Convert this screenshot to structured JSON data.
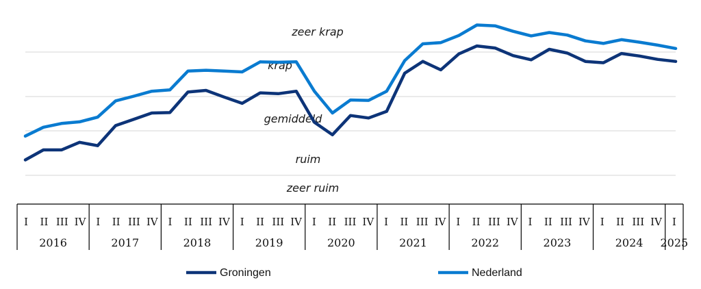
{
  "chart_data": {
    "type": "line",
    "y_bands": [
      "zeer krap",
      "krap",
      "gemiddeld",
      "ruim",
      "zeer ruim"
    ],
    "grid": true,
    "legend_position": "bottom",
    "quarters": [
      "I",
      "II",
      "III",
      "IV",
      "I",
      "II",
      "III",
      "IV",
      "I",
      "II",
      "III",
      "IV",
      "I",
      "II",
      "III",
      "IV",
      "I",
      "II",
      "III",
      "IV",
      "I",
      "II",
      "III",
      "IV",
      "I",
      "II",
      "III",
      "IV",
      "I",
      "II",
      "III",
      "IV",
      "I",
      "II",
      "III",
      "IV",
      "I"
    ],
    "years": [
      "2016",
      "2017",
      "2018",
      "2019",
      "2020",
      "2021",
      "2022",
      "2023",
      "2024",
      "2025"
    ],
    "ylim": [
      0,
      5
    ],
    "series": [
      {
        "name": "Groningen",
        "color": "#0d3478",
        "values": [
          1.38,
          1.62,
          1.62,
          1.8,
          1.72,
          2.2,
          2.35,
          2.5,
          2.51,
          3.0,
          3.04,
          2.88,
          2.73,
          2.98,
          2.96,
          3.02,
          2.28,
          1.98,
          2.44,
          2.38,
          2.54,
          3.45,
          3.73,
          3.53,
          3.91,
          4.1,
          4.05,
          3.87,
          3.77,
          4.02,
          3.93,
          3.73,
          3.7,
          3.92,
          3.86,
          3.78,
          3.73
        ]
      },
      {
        "name": "Nederland",
        "color": "#0a7bd0",
        "values": [
          1.95,
          2.16,
          2.25,
          2.29,
          2.4,
          2.79,
          2.9,
          3.02,
          3.05,
          3.5,
          3.52,
          3.5,
          3.48,
          3.72,
          3.71,
          3.72,
          3.02,
          2.5,
          2.81,
          2.8,
          3.02,
          3.75,
          4.15,
          4.18,
          4.35,
          4.6,
          4.58,
          4.45,
          4.34,
          4.42,
          4.36,
          4.22,
          4.16,
          4.25,
          4.19,
          4.12,
          4.04
        ]
      }
    ]
  }
}
